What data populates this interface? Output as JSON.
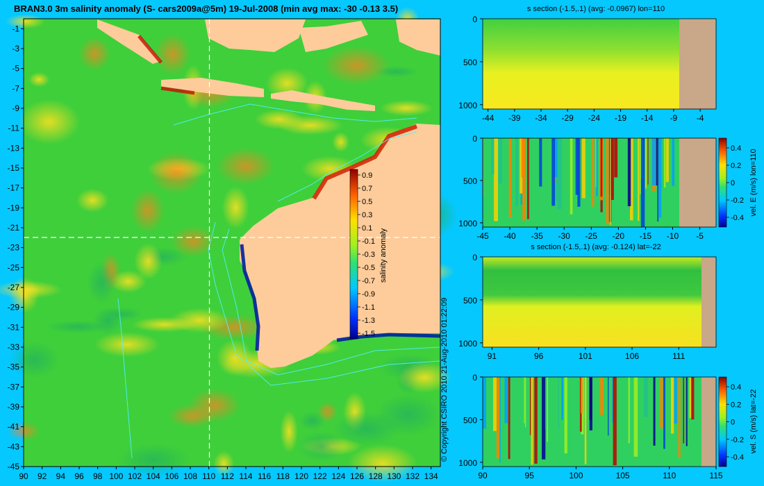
{
  "map": {
    "title": "BRAN3.0 3m salinity anomaly (S- cars2009a@5m) 19-Jul-2008 (min avg max: -30 -0.13 3.5)",
    "lat_ticks": [
      "-1",
      "-3",
      "-5",
      "-7",
      "-9",
      "-11",
      "-13",
      "-15",
      "-17",
      "-19",
      "-21",
      "-23",
      "-25",
      "-27",
      "-29",
      "-31",
      "-33",
      "-35",
      "-37",
      "-39",
      "-41",
      "-43",
      "-45"
    ],
    "lon_ticks": [
      "90",
      "92",
      "94",
      "96",
      "98",
      "100",
      "102",
      "104",
      "106",
      "108",
      "110",
      "112",
      "114",
      "116",
      "118",
      "120",
      "122",
      "124",
      "126",
      "128",
      "130",
      "132",
      "134"
    ],
    "section_lon": 110,
    "section_lat": -22,
    "colorbar_label": "salinity anomaly",
    "colorbar_ticks": [
      "0.9",
      "0.7",
      "0.5",
      "0.3",
      "0.1",
      "-0.1",
      "-0.3",
      "-0.5",
      "-0.7",
      "-0.9",
      "-1.1",
      "-1.3",
      "-1.5"
    ],
    "copyright": "© Copyright CSIRO 2010     21-Aug-2010 01:22:09"
  },
  "chart_data": [
    {
      "type": "heatmap",
      "title": "s section (-1.5,.1) (avg: -0.0967) lon=110",
      "x_ticks": [
        "-44",
        "-39",
        "-34",
        "-29",
        "-24",
        "-19",
        "-14",
        "-9",
        "-4"
      ],
      "y_ticks": [
        "0",
        "500",
        "1000"
      ],
      "xlim": [
        -45,
        -1
      ],
      "ylim": [
        1050,
        0
      ]
    },
    {
      "type": "heatmap",
      "title": "",
      "x_ticks": [
        "-45",
        "-40",
        "-35",
        "-30",
        "-25",
        "-20",
        "-15",
        "-10",
        "-5"
      ],
      "y_ticks": [
        "0",
        "500",
        "1000"
      ],
      "colorbar_label": "vel. E (m/s) lon=110",
      "colorbar_ticks": [
        "0.4",
        "0.2",
        "0",
        "-0.2",
        "-0.4"
      ],
      "xlim": [
        -45,
        -2
      ],
      "ylim": [
        1050,
        0
      ]
    },
    {
      "type": "heatmap",
      "title": "s section (-1.5,.1) (avg: -0.124) lat=-22",
      "x_ticks": [
        "91",
        "96",
        "101",
        "106",
        "111"
      ],
      "y_ticks": [
        "0",
        "500",
        "1000"
      ],
      "xlim": [
        90,
        115
      ],
      "ylim": [
        1050,
        0
      ]
    },
    {
      "type": "heatmap",
      "title": "",
      "x_ticks": [
        "90",
        "95",
        "100",
        "105",
        "110",
        "115"
      ],
      "y_ticks": [
        "0",
        "500",
        "1000"
      ],
      "colorbar_label": "vel. S (m/s) lat=-22",
      "colorbar_ticks": [
        "0.4",
        "0.2",
        "0",
        "-0.2",
        "-0.4"
      ],
      "xlim": [
        90,
        115
      ],
      "ylim": [
        1050,
        0
      ]
    }
  ],
  "colors": {
    "background": "#05c8ff",
    "land": "#fdcc9a",
    "section_land": "#c8a888",
    "ocean_base": "#3fcf3a",
    "contour": "#4ff0ff"
  }
}
